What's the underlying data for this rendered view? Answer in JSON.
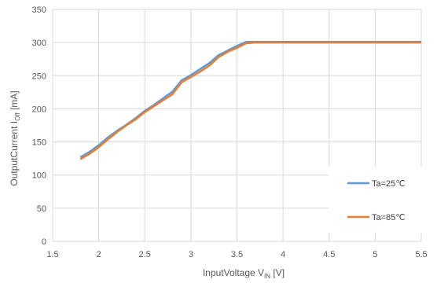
{
  "chart_data": {
    "type": "line",
    "xlabel": "InputVoltage V",
    "xlabel_sub": "IN",
    "xlabel_unit": " [V]",
    "ylabel": "OutputCurrent I",
    "ylabel_sub": "Off",
    "ylabel_unit": " [mA]",
    "xlim": [
      1.5,
      5.5
    ],
    "ylim": [
      0,
      350
    ],
    "xticks": [
      "1.5",
      "2",
      "2.5",
      "3",
      "3.5",
      "4",
      "4.5",
      "5",
      "5.5"
    ],
    "yticks": [
      "0",
      "50",
      "100",
      "150",
      "200",
      "250",
      "300",
      "350"
    ],
    "grid": true,
    "legend_position": "right",
    "series": [
      {
        "name": "Ta=25℃",
        "color": "#5B9BD5",
        "x": [
          1.8,
          1.9,
          2.0,
          2.1,
          2.2,
          2.3,
          2.4,
          2.5,
          2.6,
          2.7,
          2.8,
          2.9,
          3.0,
          3.1,
          3.2,
          3.3,
          3.4,
          3.5,
          3.6,
          3.7,
          4.0,
          4.5,
          5.0,
          5.5
        ],
        "y": [
          127,
          135,
          145,
          157,
          167,
          176,
          186,
          197,
          206,
          216,
          226,
          243,
          251,
          260,
          269,
          281,
          288,
          295,
          301,
          301,
          301,
          301,
          301,
          301
        ]
      },
      {
        "name": "Ta=85℃",
        "color": "#ED7D31",
        "x": [
          1.8,
          1.9,
          2.0,
          2.1,
          2.2,
          2.3,
          2.4,
          2.5,
          2.6,
          2.7,
          2.8,
          2.9,
          3.0,
          3.1,
          3.2,
          3.3,
          3.4,
          3.5,
          3.6,
          3.7,
          4.0,
          4.5,
          5.0,
          5.5
        ],
        "y": [
          124,
          132,
          142,
          154,
          165,
          175,
          184,
          195,
          204,
          213,
          222,
          240,
          248,
          256,
          265,
          278,
          286,
          292,
          299,
          300,
          300,
          300,
          300,
          300
        ]
      }
    ]
  }
}
